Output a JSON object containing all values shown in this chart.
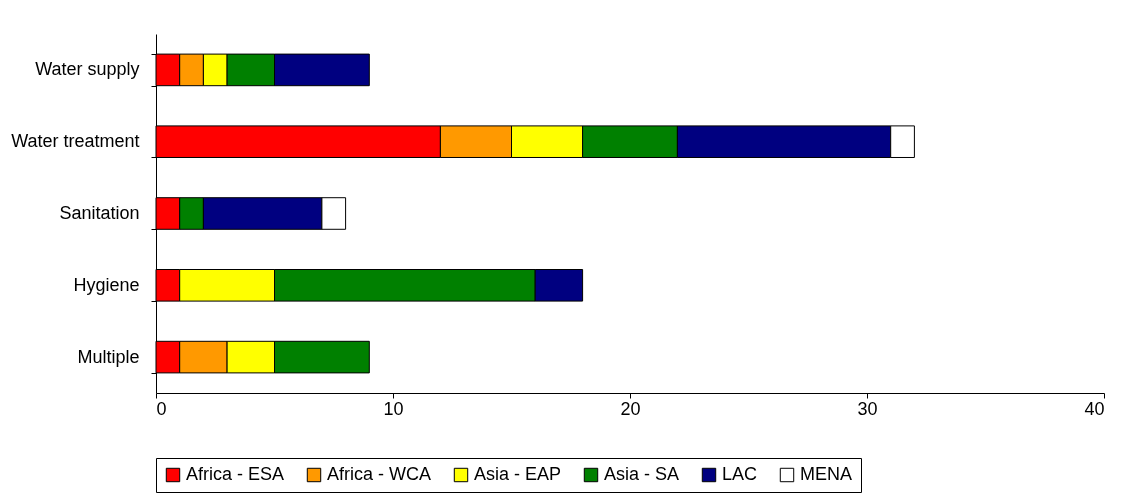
{
  "chart_data": {
    "type": "bar",
    "orientation": "horizontal",
    "stacked": true,
    "categories": [
      "Water supply",
      "Water treatment",
      "Sanitation",
      "Hygiene",
      "Multiple"
    ],
    "series": [
      {
        "name": "Africa - ESA",
        "color": "#ff0000",
        "values": [
          1,
          12,
          1,
          1,
          1
        ]
      },
      {
        "name": "Africa - WCA",
        "color": "#ff9900",
        "values": [
          1,
          3,
          0,
          0,
          2
        ]
      },
      {
        "name": "Asia - EAP",
        "color": "#ffff00",
        "values": [
          1,
          3,
          0,
          4,
          2
        ]
      },
      {
        "name": "Asia - SA",
        "color": "#008000",
        "values": [
          2,
          4,
          1,
          11,
          4
        ]
      },
      {
        "name": "LAC",
        "color": "#000080",
        "values": [
          4,
          9,
          5,
          2,
          0
        ]
      },
      {
        "name": "MENA",
        "color": "#ffffff",
        "values": [
          0,
          1,
          1,
          0,
          0
        ]
      }
    ],
    "xlim": [
      0,
      40
    ],
    "xticks": [
      0,
      10,
      20,
      30,
      40
    ],
    "grid": false,
    "legend": "bottom"
  }
}
